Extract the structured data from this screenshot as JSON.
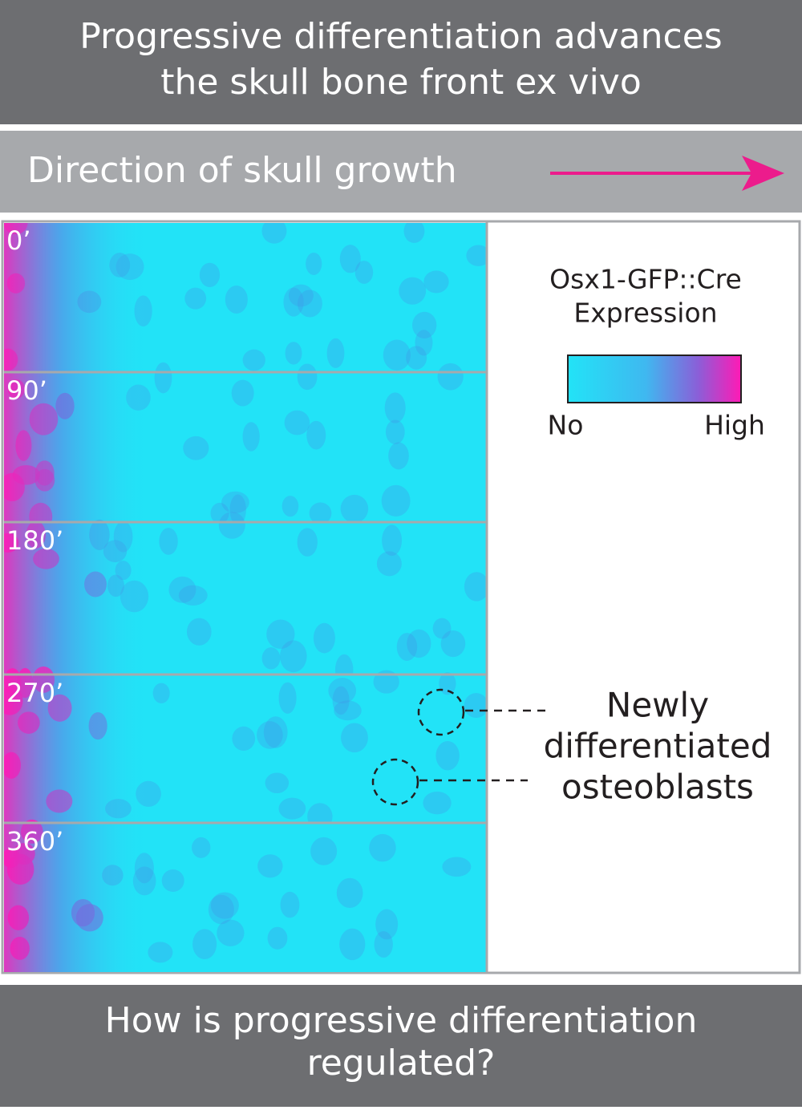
{
  "header": {
    "title_lines": [
      "Progressive differentiation advances",
      "the skull bone front ex vivo"
    ]
  },
  "banner": {
    "text": "Direction of skull growth"
  },
  "panels": {
    "labels": [
      "0’",
      "90’",
      "180’",
      "270’",
      "360’"
    ]
  },
  "legend": {
    "title_lines": [
      "Osx1-GFP::Cre",
      "Expression"
    ],
    "low": "No",
    "high": "High"
  },
  "annotation": {
    "lines": [
      "Newly",
      "differentiated",
      "osteoblasts"
    ]
  },
  "footer": {
    "question_lines": [
      "How is progressive differentiation",
      "regulated?"
    ]
  }
}
